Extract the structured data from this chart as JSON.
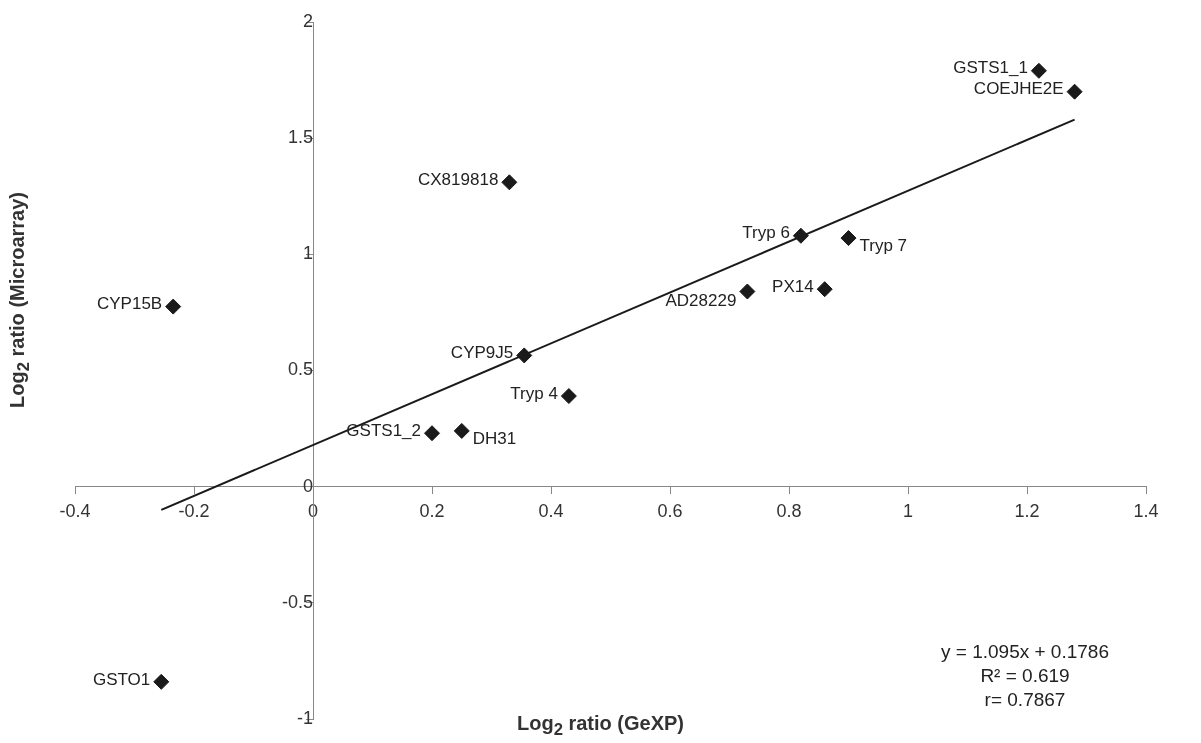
{
  "chart_data": {
    "type": "scatter",
    "xlabel": "Log$_{2}$ ratio (GeXP)",
    "ylabel": "Log$_{2}$ ratio (Microarray)",
    "xlim": [
      -0.4,
      1.4
    ],
    "xticks": [
      -0.4,
      -0.2,
      0,
      0.2,
      0.4,
      0.6,
      0.8,
      1,
      1.2,
      1.4
    ],
    "ylim": [
      -1,
      2
    ],
    "yticks": [
      -1,
      -0.5,
      0,
      0.5,
      1,
      1.5,
      2
    ],
    "grid": false,
    "legend": false,
    "marker": "diamond",
    "series": [
      {
        "color": "#1a1a1a",
        "x": [
          1.22,
          1.28,
          0.82,
          0.9,
          0.86,
          0.73,
          0.33,
          -0.235,
          0.355,
          0.43,
          0.2,
          0.25,
          -0.255
        ],
        "values": [
          1.79,
          1.7,
          1.08,
          1.07,
          0.85,
          0.84,
          1.31,
          0.775,
          0.565,
          0.39,
          0.23,
          0.24,
          -0.84
        ]
      },
      {
        "type": "line",
        "marker": "none",
        "color": "#1a1a1a",
        "x": [
          -0.255,
          1.28
        ],
        "values": [
          -0.1,
          1.58
        ]
      }
    ],
    "annotations": [
      {
        "text": "GSTS1_1",
        "x": 1.22,
        "y": 1.79
      },
      {
        "text": "COEJHE2E",
        "x": 1.28,
        "y": 1.7
      },
      {
        "text": "Tryp 6",
        "x": 0.82,
        "y": 1.08
      },
      {
        "text": "Tryp 7",
        "x": 0.9,
        "y": 1.07
      },
      {
        "text": "PX14",
        "x": 0.86,
        "y": 0.85
      },
      {
        "text": "AD28229",
        "x": 0.73,
        "y": 0.84
      },
      {
        "text": "CX819818",
        "x": 0.33,
        "y": 1.31
      },
      {
        "text": "CYP15B",
        "x": -0.235,
        "y": 0.775
      },
      {
        "text": "CYP9J5",
        "x": 0.355,
        "y": 0.565
      },
      {
        "text": "Tryp 4",
        "x": 0.43,
        "y": 0.39
      },
      {
        "text": "GSTS1_2",
        "x": 0.2,
        "y": 0.23
      },
      {
        "text": "DH31",
        "x": 0.25,
        "y": 0.24
      },
      {
        "text": "GSTO1",
        "x": -0.255,
        "y": -0.84
      },
      "y = 1.095x + 0.1786",
      "R² = 0.619",
      "r= 0.7867"
    ]
  }
}
